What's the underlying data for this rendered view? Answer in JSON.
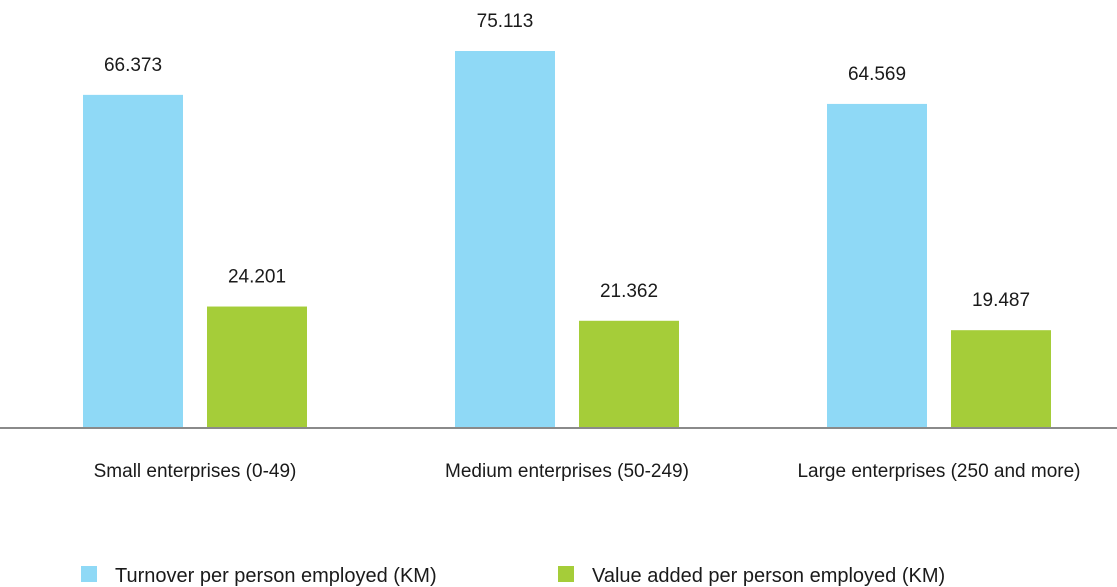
{
  "chart_data": {
    "type": "bar",
    "title": "",
    "xlabel": "",
    "ylabel": "",
    "categories": [
      "Small enterprises (0-49)",
      "Medium enterprises (50-249)",
      "Large enterprises (250 and more)"
    ],
    "series": [
      {
        "name": "Turnover per person employed (KM)",
        "values": [
          66373,
          75113,
          64569
        ],
        "labels": [
          "66.373",
          "75.113",
          "64.569"
        ],
        "color": "#8fd9f6"
      },
      {
        "name": "Value added per person employed (KM)",
        "values": [
          24201,
          21362,
          19487
        ],
        "labels": [
          "24.201",
          "21.362",
          "19.487"
        ],
        "color": "#a5cd39"
      }
    ],
    "ylim": [
      0,
      85000
    ],
    "grid": false,
    "legend_position": "bottom",
    "axis_color": "#8a8a8a"
  }
}
